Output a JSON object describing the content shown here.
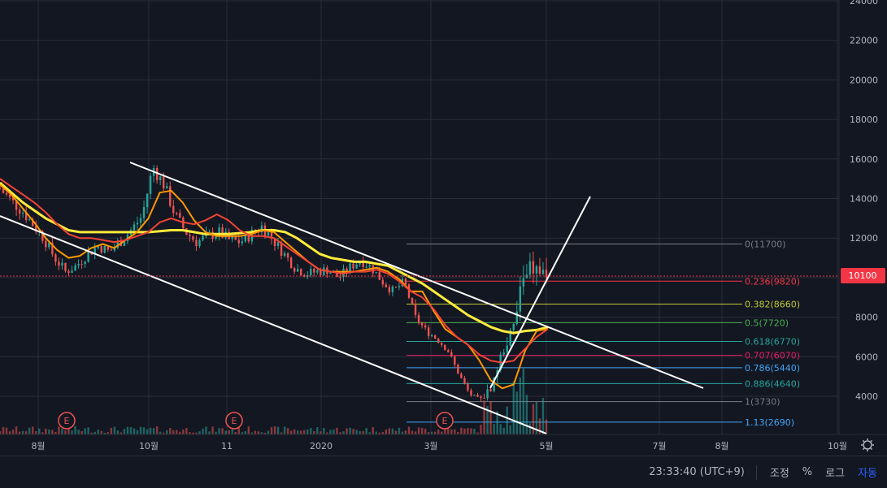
{
  "chart_data": {
    "type": "candlestick",
    "y_ticks": [
      4000,
      6000,
      8000,
      10000,
      12000,
      14000,
      16000,
      18000,
      20000,
      22000,
      24000
    ],
    "ylim": [
      2600,
      24500
    ],
    "x_ticks": [
      "8월",
      "10월",
      "11",
      "2020",
      "3월",
      "5월",
      "7월",
      "8월",
      "10월"
    ],
    "last_price": "10100",
    "fib_levels": [
      {
        "label": "0(11700)",
        "value": 11700,
        "color": "#787b86"
      },
      {
        "label": "0.236(9820)",
        "value": 9820,
        "color": "#f23645"
      },
      {
        "label": "0.382(8660)",
        "value": 8660,
        "color": "#c0ca33"
      },
      {
        "label": "0.5(7720)",
        "value": 7720,
        "color": "#4caf50"
      },
      {
        "label": "0.618(6770)",
        "value": 6770,
        "color": "#26a69a"
      },
      {
        "label": "0.707(6070)",
        "value": 6070,
        "color": "#e91e63"
      },
      {
        "label": "0.786(5440)",
        "value": 5440,
        "color": "#42a5f5"
      },
      {
        "label": "0.886(4640)",
        "value": 4640,
        "color": "#26a69a"
      },
      {
        "label": "1(3730)",
        "value": 3730,
        "color": "#787b86"
      },
      {
        "label": "1.13(2690)",
        "value": 2690,
        "color": "#42a5f5"
      }
    ],
    "earnings_markers": [
      "E",
      "E",
      "E"
    ],
    "series": [
      {
        "kind": "price",
        "values": [
          14500,
          13900,
          13400,
          12700,
          12000,
          11000,
          10300,
          10600,
          11200,
          11600,
          11300,
          11800,
          12400,
          13100,
          15600,
          14700,
          13200,
          12300,
          11800,
          12100,
          12300,
          11900,
          11800,
          12200,
          12600,
          11900,
          11200,
          10500,
          10200,
          10300,
          10400,
          10000,
          10500,
          10900,
          10500,
          9800,
          9300,
          9800,
          8000,
          7300,
          6900,
          6300,
          5100,
          4100,
          3800,
          4500,
          6300,
          7400,
          10500,
          10400,
          10100
        ]
      },
      {
        "kind": "ma",
        "color": "#ffeb3b",
        "values": [
          14800,
          14300,
          13800,
          13400,
          13000,
          12700,
          12400,
          12300,
          12300,
          12300,
          12300,
          12300,
          12300,
          12300,
          12350,
          12400,
          12400,
          12300,
          12200,
          12200,
          12200,
          12250,
          12300,
          12400,
          12400,
          12300,
          12000,
          11600,
          11200,
          11000,
          10900,
          10800,
          10800,
          10700,
          10600,
          10300,
          10000,
          9700,
          9300,
          8900,
          8500,
          8100,
          7800,
          7500,
          7300,
          7200,
          7300,
          7350,
          7500
        ]
      },
      {
        "kind": "ma",
        "color": "#ff9800",
        "values": [
          14700,
          14200,
          13500,
          12800,
          12000,
          11400,
          11000,
          11100,
          11500,
          11700,
          11500,
          11900,
          12300,
          13000,
          14300,
          14400,
          13800,
          12900,
          12300,
          12100,
          12100,
          12100,
          12200,
          12400,
          12300,
          11800,
          11300,
          10800,
          10400,
          10300,
          10300,
          10300,
          10400,
          10500,
          10300,
          9900,
          9300,
          9300,
          8300,
          7400,
          7000,
          6600,
          5800,
          4800,
          4400,
          4600,
          6300,
          7300,
          7400
        ]
      },
      {
        "kind": "ma",
        "color": "#f44336",
        "values": [
          15000,
          14600,
          14200,
          13800,
          13300,
          12700,
          12200,
          12000,
          12000,
          11900,
          11800,
          11900,
          12100,
          12300,
          12800,
          13000,
          12800,
          12700,
          12900,
          13200,
          12900,
          12400,
          12100,
          12100,
          12000,
          11600,
          11200,
          10800,
          10400,
          10300,
          10200,
          10300,
          10300,
          10400,
          10200,
          9800,
          9300,
          9000,
          8400,
          7600,
          7000,
          6600,
          6100,
          5800,
          5700,
          5800,
          6400,
          7000,
          7400
        ]
      }
    ]
  },
  "status": {
    "time": "23:33:40 (UTC+9)",
    "adjust_label": "조정",
    "percent_label": "%",
    "log_label": "로그",
    "auto_label": "자동"
  },
  "colors": {
    "up": "#26a69a",
    "down": "#ef5350",
    "background": "#131722",
    "grid": "#2a2e39",
    "price_line": "#f23645"
  }
}
